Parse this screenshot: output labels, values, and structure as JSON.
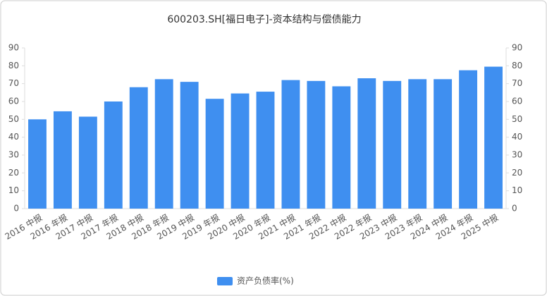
{
  "chart_data": {
    "type": "bar",
    "title": "600203.SH[福日电子]-资本结构与偿债能力",
    "categories": [
      "2016 中报",
      "2016 年报",
      "2017 中报",
      "2017 年报",
      "2018 中报",
      "2018 年报",
      "2019 中报",
      "2019 年报",
      "2020 中报",
      "2020 年报",
      "2021 中报",
      "2021 年报",
      "2022 中报",
      "2022 年报",
      "2023 中报",
      "2023 年报",
      "2024 中报",
      "2024 年报",
      "2025 中报"
    ],
    "series": [
      {
        "name": "资产负债率(%)",
        "color": "#3f8ff0",
        "values": [
          50,
          54.5,
          51.5,
          60,
          68,
          72.5,
          71,
          61.5,
          64.5,
          65.5,
          72,
          71.5,
          68.5,
          73,
          71.5,
          72.5,
          72.5,
          77.5,
          79.5
        ]
      }
    ],
    "ylim": [
      0,
      90
    ],
    "yticks": [
      0,
      10,
      20,
      30,
      40,
      50,
      60,
      70,
      80,
      90
    ],
    "y2lim": [
      0,
      90
    ],
    "y2ticks": [
      0,
      10,
      20,
      30,
      40,
      50,
      60,
      70,
      80,
      90
    ],
    "legend": "bottom"
  }
}
